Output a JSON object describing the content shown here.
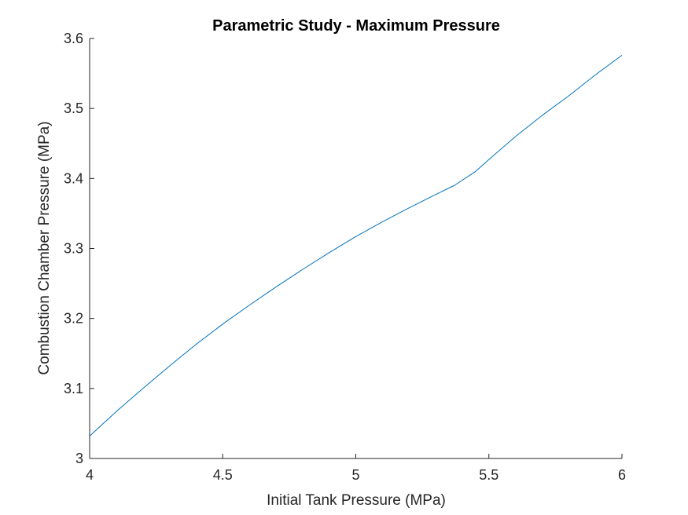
{
  "chart_data": {
    "type": "line",
    "title": "Parametric Study - Maximum Pressure",
    "xlabel": "Initial Tank Pressure (MPa)",
    "ylabel": "Combustion Chamber Pressure (MPa)",
    "xlim": [
      4,
      6
    ],
    "ylim": [
      3,
      3.6
    ],
    "xticks": [
      "4",
      "4.5",
      "5",
      "5.5",
      "6"
    ],
    "yticks": [
      "3",
      "3.1",
      "3.2",
      "3.3",
      "3.4",
      "3.5",
      "3.6"
    ],
    "grid": false,
    "series": [
      {
        "color": "#0072bd",
        "x": [
          4.0,
          4.1,
          4.2,
          4.3,
          4.4,
          4.5,
          4.6,
          4.7,
          4.8,
          4.9,
          5.0,
          5.1,
          5.2,
          5.3,
          5.37,
          5.45,
          5.5,
          5.6,
          5.7,
          5.8,
          5.9,
          6.0
        ],
        "y": [
          3.032,
          3.067,
          3.1,
          3.132,
          3.163,
          3.192,
          3.219,
          3.245,
          3.27,
          3.294,
          3.317,
          3.338,
          3.358,
          3.377,
          3.39,
          3.41,
          3.427,
          3.46,
          3.49,
          3.518,
          3.548,
          3.576
        ]
      }
    ]
  }
}
